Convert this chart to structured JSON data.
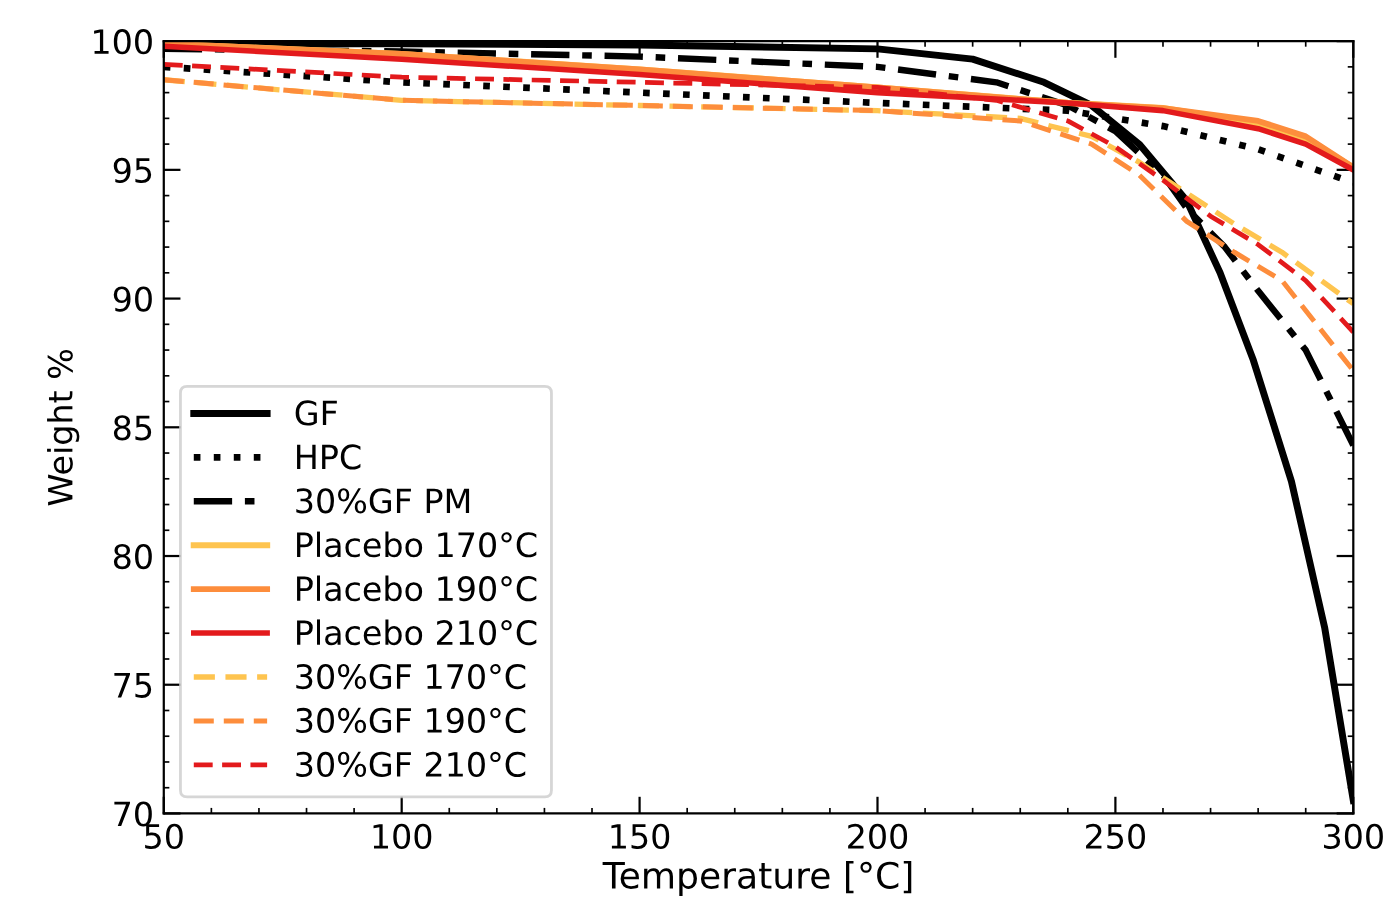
{
  "chart_data": {
    "type": "line",
    "xlabel": "Temperature [°C]",
    "ylabel": "Weight %",
    "xlim": [
      50,
      300
    ],
    "ylim": [
      70,
      100
    ],
    "xticks": [
      50,
      100,
      150,
      200,
      250,
      300
    ],
    "yticks": [
      70,
      75,
      80,
      85,
      90,
      95,
      100
    ],
    "grid": false,
    "legend": "bottom left",
    "marker": "none",
    "series": [
      {
        "name": "GF",
        "color": "#000000",
        "line_style": "solid",
        "x": [
          50,
          100,
          150,
          200,
          220,
          235,
          245,
          255,
          265,
          272,
          279,
          287,
          294,
          300
        ],
        "values": [
          99.9,
          99.9,
          99.85,
          99.7,
          99.3,
          98.4,
          97.5,
          96,
          93.8,
          91,
          87.6,
          82.9,
          77.2,
          70.5
        ]
      },
      {
        "name": "HPC",
        "color": "#000000",
        "line_style": "dotted",
        "x": [
          50,
          100,
          150,
          200,
          240,
          260,
          280,
          300
        ],
        "values": [
          99.0,
          98.4,
          98.0,
          97.6,
          97.3,
          96.7,
          95.8,
          94.5
        ]
      },
      {
        "name": "30%GF PM",
        "color": "#000000",
        "line_style": "dashdot",
        "x": [
          50,
          100,
          150,
          200,
          225,
          240,
          250,
          260,
          265,
          273,
          280,
          290,
          300
        ],
        "values": [
          99.7,
          99.6,
          99.4,
          99.0,
          98.4,
          97.5,
          96.5,
          94.8,
          93.5,
          92.0,
          90.3,
          88,
          84.3
        ]
      },
      {
        "name": "Placebo 170°C",
        "color": "#fec44f",
        "line_style": "solid",
        "x": [
          50,
          100,
          150,
          200,
          240,
          260,
          280,
          290,
          300
        ],
        "values": [
          99.9,
          99.5,
          98.9,
          98.2,
          97.6,
          97.4,
          96.8,
          96.2,
          95.1
        ]
      },
      {
        "name": "Placebo 190°C",
        "color": "#fd8d3c",
        "line_style": "solid",
        "x": [
          50,
          100,
          150,
          200,
          240,
          260,
          280,
          290,
          300
        ],
        "values": [
          99.9,
          99.5,
          98.9,
          98.2,
          97.6,
          97.4,
          96.9,
          96.3,
          95.1
        ]
      },
      {
        "name": "Placebo 210°C",
        "color": "#e31a1c",
        "line_style": "solid",
        "x": [
          50,
          100,
          150,
          200,
          240,
          260,
          280,
          290,
          300
        ],
        "values": [
          99.8,
          99.3,
          98.7,
          98.0,
          97.6,
          97.3,
          96.6,
          96.0,
          95.0
        ]
      },
      {
        "name": "30%GF 170°C",
        "color": "#fec44f",
        "line_style": "dashed",
        "x": [
          50,
          100,
          150,
          200,
          230,
          245,
          255,
          265,
          275,
          285,
          300
        ],
        "values": [
          98.5,
          97.7,
          97.5,
          97.3,
          97.0,
          96.3,
          95.3,
          94.1,
          92.9,
          91.8,
          89.8
        ]
      },
      {
        "name": "30%GF 190°C",
        "color": "#fd8d3c",
        "line_style": "dashed",
        "x": [
          50,
          100,
          150,
          200,
          230,
          245,
          255,
          265,
          275,
          285,
          300
        ],
        "values": [
          98.5,
          97.7,
          97.5,
          97.3,
          96.9,
          96.0,
          94.8,
          93.0,
          91.8,
          90.7,
          87.2
        ]
      },
      {
        "name": "30%GF 210°C",
        "color": "#e31a1c",
        "line_style": "dashed",
        "x": [
          50,
          100,
          150,
          200,
          225,
          240,
          250,
          260,
          270,
          280,
          290,
          300
        ],
        "values": [
          99.1,
          98.6,
          98.4,
          98.2,
          97.7,
          96.9,
          95.9,
          94.6,
          93.2,
          92.1,
          90.7,
          88.7
        ]
      }
    ]
  }
}
